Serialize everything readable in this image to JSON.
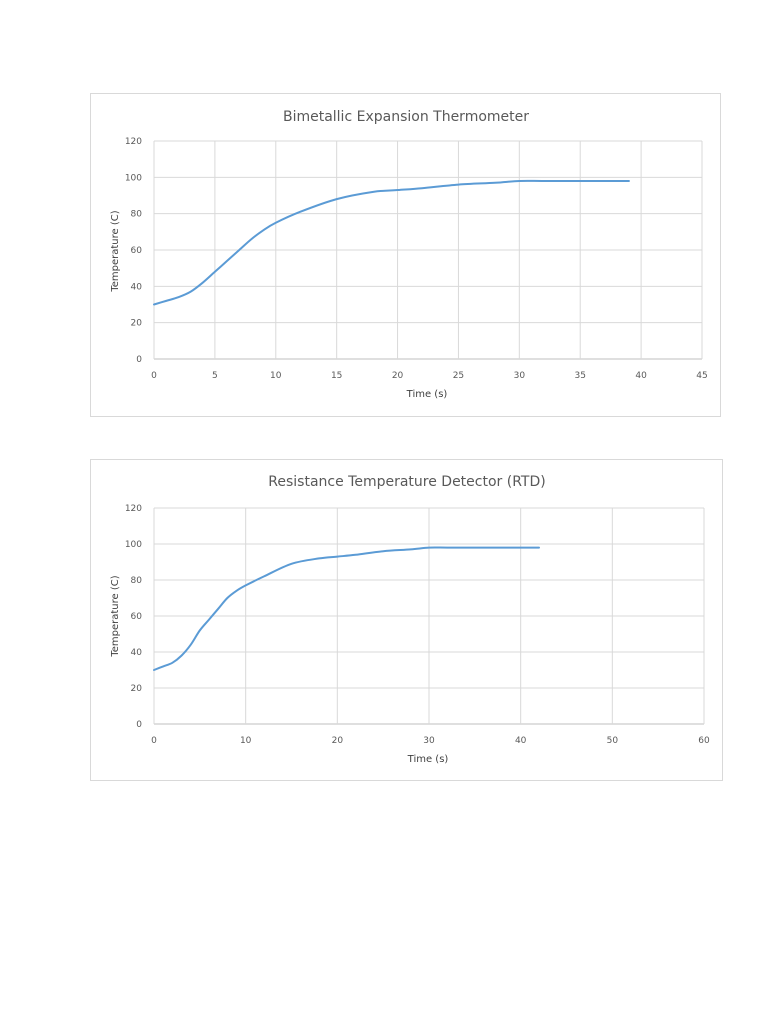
{
  "chart_data": [
    {
      "type": "line",
      "title": "Bimetallic Expansion Thermometer",
      "xlabel": "Time (s)",
      "ylabel": "Temperature (C)",
      "xlim": [
        0,
        45
      ],
      "ylim": [
        0,
        120
      ],
      "x_ticks": [
        0,
        5,
        10,
        15,
        20,
        25,
        30,
        35,
        40,
        45
      ],
      "y_ticks": [
        0,
        20,
        40,
        60,
        80,
        100,
        120
      ],
      "grid": true,
      "line_color": "#5b9bd5",
      "series": [
        {
          "x": [
            0,
            1,
            2,
            3,
            4,
            5,
            6,
            7,
            8,
            9,
            10,
            12,
            15,
            18,
            20,
            22,
            25,
            28,
            30,
            32,
            35,
            39
          ],
          "values": [
            30,
            32,
            34,
            37,
            42,
            48,
            54,
            60,
            66,
            71,
            75,
            81,
            88,
            92,
            93,
            94,
            96,
            97,
            98,
            98,
            98,
            98
          ]
        }
      ]
    },
    {
      "type": "line",
      "title": "Resistance Temperature Detector (RTD)",
      "xlabel": "Time (s)",
      "ylabel": "Temperature (C)",
      "xlim": [
        0,
        60
      ],
      "ylim": [
        0,
        120
      ],
      "x_ticks": [
        0,
        10,
        20,
        30,
        40,
        50,
        60
      ],
      "y_ticks": [
        0,
        20,
        40,
        60,
        80,
        100,
        120
      ],
      "grid": true,
      "line_color": "#5b9bd5",
      "series": [
        {
          "x": [
            0,
            1,
            2,
            3,
            4,
            5,
            6,
            7,
            8,
            9,
            10,
            12,
            15,
            18,
            20,
            22,
            25,
            28,
            30,
            32,
            35,
            38,
            42
          ],
          "values": [
            30,
            32,
            34,
            38,
            44,
            52,
            58,
            64,
            70,
            74,
            77,
            82,
            89,
            92,
            93,
            94,
            96,
            97,
            98,
            98,
            98,
            98,
            98
          ]
        }
      ]
    }
  ]
}
